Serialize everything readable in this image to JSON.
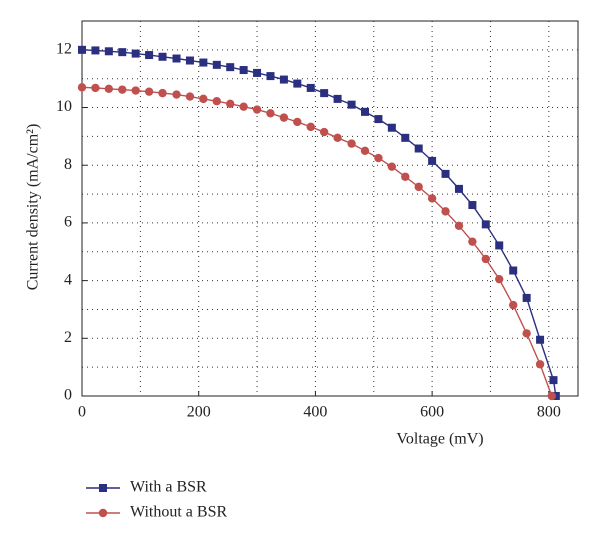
{
  "chart_data": {
    "type": "line",
    "xlabel": "Voltage (mV)",
    "ylabel": "Current density (mA/cm²)",
    "xlim": [
      0,
      850
    ],
    "ylim": [
      0,
      13
    ],
    "xticks": [
      0,
      200,
      400,
      600,
      800
    ],
    "yticks": [
      0,
      2,
      4,
      6,
      8,
      10,
      12
    ],
    "x_minor_grid": [
      100,
      200,
      300,
      400,
      500,
      600,
      700,
      800
    ],
    "y_minor_grid": [
      1,
      2,
      3,
      4,
      5,
      6,
      7,
      8,
      9,
      10,
      11,
      12
    ],
    "grid": true,
    "legend": "bottom-left",
    "series": [
      {
        "name": "With a BSR",
        "color": "#2b2f7f",
        "marker": "square",
        "x": [
          0,
          23,
          46,
          69,
          92,
          115,
          138,
          162,
          185,
          208,
          231,
          254,
          277,
          300,
          323,
          346,
          369,
          392,
          415,
          438,
          462,
          485,
          508,
          531,
          554,
          577,
          600,
          623,
          646,
          669,
          692,
          715,
          739,
          762,
          785,
          808,
          812
        ],
        "values": [
          12.0,
          11.98,
          11.95,
          11.92,
          11.87,
          11.82,
          11.76,
          11.7,
          11.63,
          11.56,
          11.48,
          11.4,
          11.3,
          11.2,
          11.09,
          10.97,
          10.83,
          10.68,
          10.5,
          10.3,
          10.1,
          9.85,
          9.6,
          9.3,
          8.95,
          8.58,
          8.15,
          7.7,
          7.18,
          6.62,
          5.95,
          5.22,
          4.35,
          3.4,
          1.95,
          0.55,
          0
        ]
      },
      {
        "name": "Without a BSR",
        "color": "#c0504d",
        "marker": "circle",
        "x": [
          0,
          23,
          46,
          69,
          92,
          115,
          138,
          162,
          185,
          208,
          231,
          254,
          277,
          300,
          323,
          346,
          369,
          392,
          415,
          438,
          462,
          485,
          508,
          531,
          554,
          577,
          600,
          623,
          646,
          669,
          692,
          715,
          739,
          762,
          785,
          805
        ],
        "values": [
          10.7,
          10.68,
          10.65,
          10.62,
          10.59,
          10.55,
          10.5,
          10.45,
          10.38,
          10.3,
          10.22,
          10.13,
          10.03,
          9.93,
          9.8,
          9.65,
          9.5,
          9.33,
          9.15,
          8.95,
          8.75,
          8.5,
          8.25,
          7.95,
          7.6,
          7.25,
          6.85,
          6.4,
          5.9,
          5.35,
          4.75,
          4.05,
          3.15,
          2.17,
          1.1,
          0
        ]
      }
    ]
  }
}
